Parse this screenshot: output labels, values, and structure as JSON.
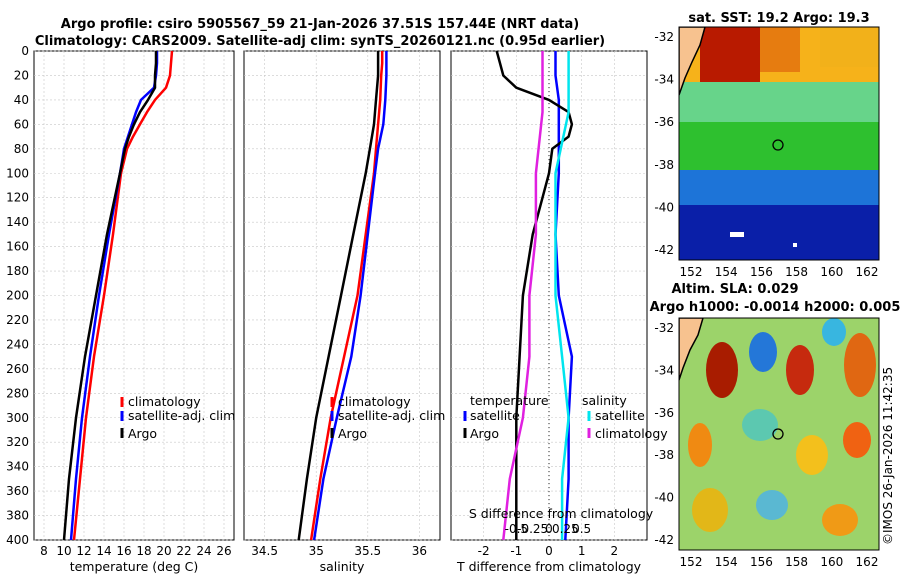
{
  "header": {
    "title_line1": "Argo profile: csiro 5905567_59 21-Jan-2026 37.51S 157.44E (NRT data)",
    "title_line2": "Climatology: CARS2009. Satellite-adj clim: synTS_20260121.nc (0.95d earlier)"
  },
  "sst_map": {
    "title": "sat. SST: 19.2 Argo: 19.3",
    "lat_ticks": [
      "-32",
      "-34",
      "-36",
      "-38",
      "-40",
      "-42"
    ],
    "lon_ticks": [
      "152",
      "154",
      "156",
      "158",
      "160",
      "162"
    ]
  },
  "sla_map": {
    "title_line1": "Altim. SLA: 0.029",
    "title_line2": "Argo h1000: -0.0014 h2000: 0.005",
    "lat_ticks": [
      "-32",
      "-34",
      "-36",
      "-38",
      "-40",
      "-42"
    ],
    "lon_ticks": [
      "152",
      "154",
      "156",
      "158",
      "160",
      "162"
    ]
  },
  "credit": "©IMOS 26-Jan-2026 11:42:35",
  "colors": {
    "climatology": "#ff0000",
    "satellite": "#0000ff",
    "argo": "#000000",
    "t_diff": "#0000ff",
    "s_diff_sat": "#00e5ee",
    "s_diff_clim": "#e020e0"
  },
  "chart_data": [
    {
      "type": "line",
      "name": "temperature",
      "xlabel": "temperature (deg C)",
      "ylabel": "",
      "xlim": [
        7,
        27
      ],
      "ylim": [
        400,
        0
      ],
      "xticks": [
        8,
        10,
        12,
        14,
        16,
        18,
        20,
        22,
        24,
        26
      ],
      "yticks": [
        0,
        20,
        40,
        60,
        80,
        100,
        120,
        140,
        160,
        180,
        200,
        220,
        240,
        260,
        280,
        300,
        320,
        340,
        360,
        380,
        400
      ],
      "legend": [
        "climatology",
        "satellite-adj. clim",
        "Argo"
      ],
      "series": [
        {
          "name": "climatology",
          "depth": [
            0,
            10,
            20,
            30,
            40,
            50,
            60,
            70,
            80,
            100,
            150,
            200,
            250,
            300,
            350,
            400
          ],
          "values": [
            20.8,
            20.7,
            20.6,
            20.2,
            19.1,
            18.3,
            17.6,
            16.9,
            16.3,
            15.7,
            14.9,
            14.0,
            13.0,
            12.2,
            11.6,
            11.0
          ]
        },
        {
          "name": "satellite-adj. clim",
          "depth": [
            0,
            10,
            20,
            30,
            40,
            50,
            60,
            70,
            80,
            100,
            150,
            200,
            250,
            300,
            350,
            400
          ],
          "values": [
            19.3,
            19.3,
            19.2,
            19.0,
            17.7,
            17.2,
            16.8,
            16.4,
            16.0,
            15.6,
            14.5,
            13.5,
            12.6,
            11.8,
            11.2,
            10.7
          ]
        },
        {
          "name": "Argo",
          "depth": [
            0,
            10,
            20,
            30,
            40,
            50,
            60,
            70,
            80,
            100,
            150,
            200,
            250,
            300,
            350,
            400
          ],
          "values": [
            19.2,
            19.2,
            19.1,
            19.1,
            18.4,
            17.6,
            17.0,
            16.5,
            16.1,
            15.6,
            14.3,
            13.2,
            12.1,
            11.2,
            10.5,
            10.0
          ]
        }
      ]
    },
    {
      "type": "line",
      "name": "salinity",
      "xlabel": "salinity",
      "xlim": [
        34.3,
        36.2
      ],
      "ylim": [
        400,
        0
      ],
      "xticks": [
        34.5,
        35,
        35.5,
        36
      ],
      "legend": [
        "climatology",
        "satellite-adj. clim",
        "Argo"
      ],
      "series": [
        {
          "name": "climatology",
          "depth": [
            0,
            10,
            20,
            40,
            60,
            80,
            100,
            150,
            200,
            250,
            300,
            350,
            400
          ],
          "values": [
            35.64,
            35.64,
            35.63,
            35.62,
            35.6,
            35.58,
            35.56,
            35.48,
            35.4,
            35.27,
            35.14,
            35.04,
            34.95
          ]
        },
        {
          "name": "satellite-adj. clim",
          "depth": [
            0,
            10,
            20,
            40,
            60,
            80,
            100,
            150,
            200,
            250,
            300,
            350,
            400
          ],
          "values": [
            35.68,
            35.68,
            35.68,
            35.67,
            35.65,
            35.6,
            35.57,
            35.5,
            35.43,
            35.34,
            35.2,
            35.07,
            34.98
          ]
        },
        {
          "name": "Argo",
          "depth": [
            0,
            10,
            20,
            40,
            60,
            80,
            100,
            150,
            200,
            250,
            300,
            350,
            400
          ],
          "values": [
            35.6,
            35.6,
            35.6,
            35.58,
            35.56,
            35.52,
            35.48,
            35.36,
            35.24,
            35.12,
            35.0,
            34.91,
            34.83
          ]
        }
      ]
    },
    {
      "type": "line",
      "name": "difference",
      "xlabel": "T difference from climatology",
      "xlabel_top": "S difference from climatology",
      "xlim": [
        -3,
        3
      ],
      "ylim": [
        400,
        0
      ],
      "xticks": [
        -2,
        -1,
        0,
        1,
        2
      ],
      "xticks_top": [
        "-0.5",
        "-0.25",
        "0",
        "0.25",
        "0.5"
      ],
      "legend_temperature_title": "temperature",
      "legend_salinity_title": "salinity",
      "legend_temperature": [
        "satellite",
        "Argo"
      ],
      "legend_salinity": [
        "satellite",
        "climatology"
      ],
      "series": [
        {
          "name": "T satellite",
          "depth": [
            0,
            20,
            40,
            60,
            80,
            100,
            150,
            200,
            250,
            300,
            350,
            400
          ],
          "values": [
            0.2,
            0.2,
            0.3,
            0.3,
            0.3,
            0.3,
            0.2,
            0.3,
            0.7,
            0.6,
            0.6,
            0.5
          ]
        },
        {
          "name": "T Argo",
          "depth": [
            0,
            10,
            20,
            30,
            40,
            50,
            60,
            70,
            80,
            100,
            150,
            200,
            250,
            300,
            350,
            400
          ],
          "values": [
            -1.6,
            -1.5,
            -1.4,
            -1.0,
            0.0,
            0.6,
            0.7,
            0.6,
            0.1,
            0.0,
            -0.5,
            -0.8,
            -0.9,
            -1.0,
            -1.0,
            -1.0
          ]
        },
        {
          "name": "S satellite",
          "depth": [
            0,
            50,
            100,
            150,
            200,
            250,
            300,
            350,
            400
          ],
          "values": [
            0.3,
            0.3,
            0.1,
            0.1,
            0.1,
            0.2,
            0.3,
            0.2,
            0.2
          ]
        },
        {
          "name": "S climatology",
          "depth": [
            0,
            50,
            100,
            150,
            200,
            250,
            300,
            350,
            400
          ],
          "values": [
            -0.1,
            -0.1,
            -0.2,
            -0.2,
            -0.3,
            -0.3,
            -0.4,
            -0.6,
            -0.7
          ]
        }
      ]
    }
  ]
}
